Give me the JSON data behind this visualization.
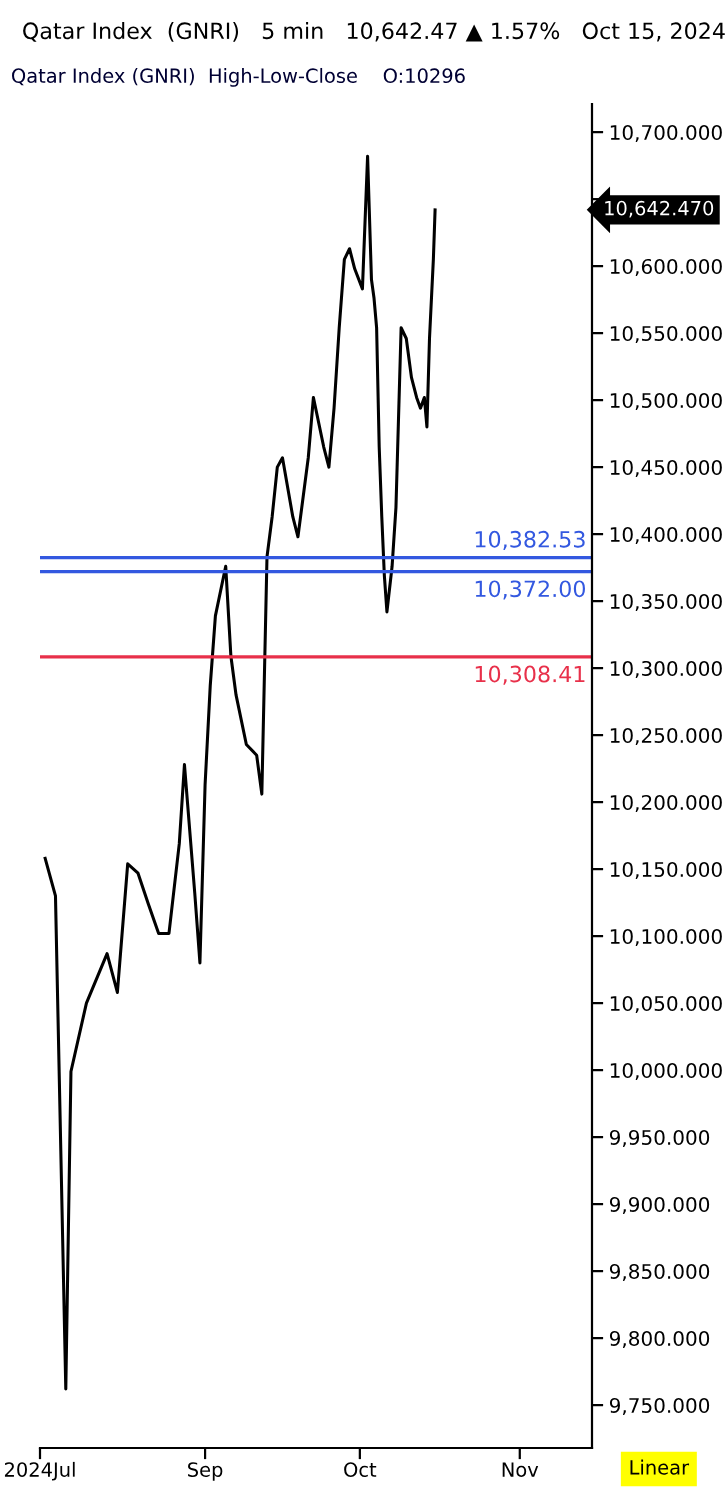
{
  "chart_data": {
    "type": "line",
    "title": "Qatar Index  (GNRI)   5 min   10,642.47 ▲ 1.57%   Oct 15, 2024",
    "subtitle": "Qatar Index (GNRI)  High-Low-Close    O:10296",
    "x": [
      "2024-08-01",
      "2024-08-03",
      "2024-08-05",
      "2024-08-06",
      "2024-08-09",
      "2024-08-13",
      "2024-08-15",
      "2024-08-17",
      "2024-08-19",
      "2024-08-21",
      "2024-08-23",
      "2024-08-25",
      "2024-08-27",
      "2024-08-28",
      "2024-08-30",
      "2024-08-31",
      "2024-09-01",
      "2024-09-02",
      "2024-09-03",
      "2024-09-05",
      "2024-09-06",
      "2024-09-07",
      "2024-09-09",
      "2024-09-11",
      "2024-09-12",
      "2024-09-13",
      "2024-09-14",
      "2024-09-15",
      "2024-09-16",
      "2024-09-18",
      "2024-09-19",
      "2024-09-21",
      "2024-09-22",
      "2024-09-24",
      "2024-09-25",
      "2024-09-26",
      "2024-09-27",
      "2024-09-28",
      "2024-09-29",
      "2024-09-30",
      "2024-10-01T12:00",
      "2024-10-02T12:00",
      "2024-10-03T06:00",
      "2024-10-03T18:00",
      "2024-10-04T06:00",
      "2024-10-04T18:00",
      "2024-10-05T06:00",
      "2024-10-05T18:00",
      "2024-10-06T06:00",
      "2024-10-07T06:00",
      "2024-10-08T00:00",
      "2024-10-09T00:00",
      "2024-10-10T00:00",
      "2024-10-11T00:00",
      "2024-10-12T00:00",
      "2024-10-12T18:00",
      "2024-10-13T12:00",
      "2024-10-14T00:00",
      "2024-10-14T12:00",
      "2024-10-15T06:00",
      "2024-10-15T14:00"
    ],
    "series": [
      {
        "color": "#000000",
        "values": [
          10158,
          10130,
          9762,
          9999,
          10050,
          10087,
          10058,
          10154,
          10147,
          10124,
          10102,
          10102,
          10169,
          10228,
          10132,
          10080,
          10213,
          10287,
          10339,
          10376,
          10309,
          10280,
          10243,
          10235,
          10206,
          10383,
          10413,
          10450,
          10457,
          10413,
          10398,
          10457,
          10502,
          10465,
          10450,
          10494,
          10554,
          10605,
          10613,
          10598,
          10583,
          10682,
          10590,
          10576,
          10554,
          10465,
          10413,
          10369,
          10342,
          10376,
          10420,
          10554,
          10546,
          10517,
          10502,
          10494,
          10502,
          10480,
          10546,
          10605,
          10642
        ]
      }
    ],
    "xlim": [
      "2024-07-31",
      "2024-11-15"
    ],
    "xticks": [
      {
        "value": "2024-07-31",
        "label": "2024Jul"
      },
      {
        "value": "2024-09-01",
        "label": "Sep"
      },
      {
        "value": "2024-10-01",
        "label": "Oct"
      },
      {
        "value": "2024-11-01",
        "label": "Nov"
      }
    ],
    "ylim": [
      9718,
      10721
    ],
    "yticks": [
      {
        "value": 9750,
        "label": "9,750.000"
      },
      {
        "value": 9800,
        "label": "9,800.000"
      },
      {
        "value": 9850,
        "label": "9,850.000"
      },
      {
        "value": 9900,
        "label": "9,900.000"
      },
      {
        "value": 9950,
        "label": "9,950.000"
      },
      {
        "value": 10000,
        "label": "10,000.000"
      },
      {
        "value": 10050,
        "label": "10,050.000"
      },
      {
        "value": 10100,
        "label": "10,100.000"
      },
      {
        "value": 10150,
        "label": "10,150.000"
      },
      {
        "value": 10200,
        "label": "10,200.000"
      },
      {
        "value": 10250,
        "label": "10,250.000"
      },
      {
        "value": 10300,
        "label": "10,300.000"
      },
      {
        "value": 10350,
        "label": "10,350.000"
      },
      {
        "value": 10400,
        "label": "10,400.000"
      },
      {
        "value": 10450,
        "label": "10,450.000"
      },
      {
        "value": 10500,
        "label": "10,500.000"
      },
      {
        "value": 10550,
        "label": "10,550.000"
      },
      {
        "value": 10600,
        "label": "10,600.000"
      },
      {
        "value": 10650,
        "label": null
      },
      {
        "value": 10700,
        "label": "10,700.000"
      }
    ],
    "ref_lines": [
      {
        "axis": "y",
        "value": 10382.53,
        "label": "10,382.53",
        "color": "#3358e0"
      },
      {
        "axis": "y",
        "value": 10372.0,
        "label": "10,372.00",
        "color": "#3358e0"
      },
      {
        "axis": "y",
        "value": 10308.41,
        "label": "10,308.41",
        "color": "#e8304a"
      }
    ],
    "annotations": [
      "10,642.470",
      "Linear"
    ],
    "grid": false,
    "legend": false,
    "marker": "none",
    "line_style": "solid"
  }
}
